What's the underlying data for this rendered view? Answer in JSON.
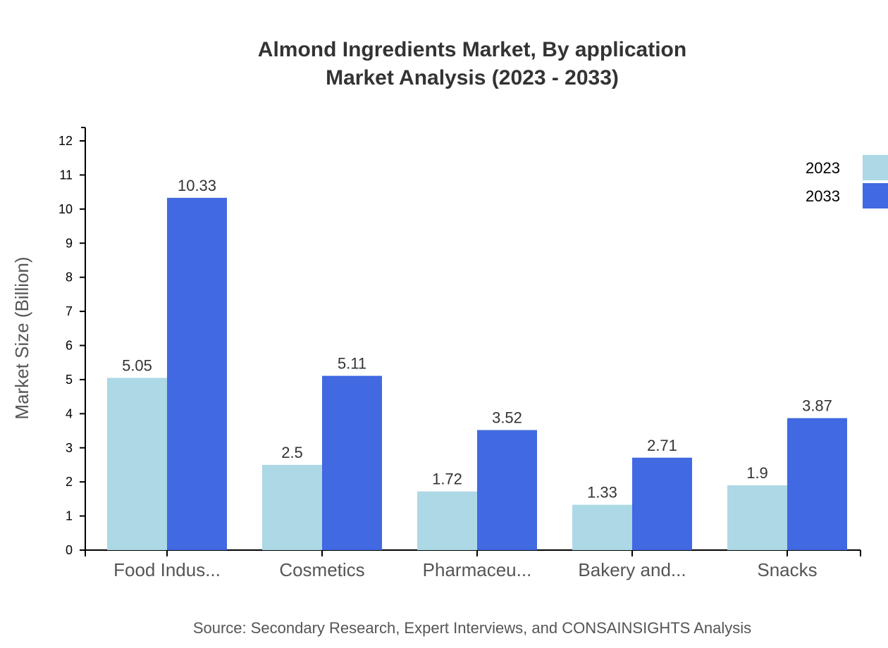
{
  "chart_data": {
    "type": "bar",
    "title": [
      "Almond Ingredients Market, By application",
      "Market Analysis (2023 - 2033)"
    ],
    "ylabel": "Market Size (Billion)",
    "xlabel": "",
    "ylim": [
      0,
      12
    ],
    "yticks": [
      0,
      1,
      2,
      3,
      4,
      5,
      6,
      7,
      8,
      9,
      10,
      11,
      12
    ],
    "categories": [
      "Food Indus...",
      "Cosmetics",
      "Pharmaceu...",
      "Bakery and...",
      "Snacks"
    ],
    "series": [
      {
        "name": "2023",
        "color": "#add8e6",
        "values": [
          5.05,
          2.5,
          1.72,
          1.33,
          1.9
        ]
      },
      {
        "name": "2033",
        "color": "#4169e1",
        "values": [
          10.33,
          5.11,
          3.52,
          2.71,
          3.87
        ]
      }
    ],
    "legend_position": "top-right",
    "grid": false,
    "source": "Source: Secondary Research, Expert Interviews, and CONSAINSIGHTS Analysis"
  }
}
